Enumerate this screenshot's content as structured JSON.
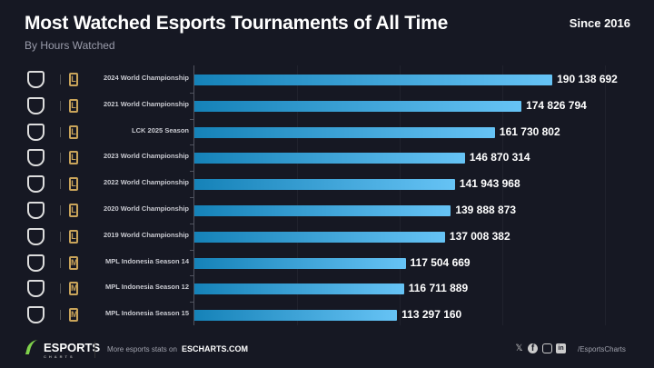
{
  "header": {
    "title": "Most Watched Esports Tournaments of All Time",
    "subtitle": "By Hours Watched",
    "since": "Since 2016"
  },
  "chart_data": {
    "type": "bar",
    "orientation": "horizontal",
    "title": "Most Watched Esports Tournaments of All Time",
    "subtitle": "By Hours Watched",
    "categories": [
      "2024 World Championship",
      "2021 World Championship",
      "LCK 2025 Season",
      "2023 World Championship",
      "2022 World Championship",
      "2020 World Championship",
      "2019 World Championship",
      "MPL Indonesia Season 14",
      "MPL Indonesia Season 12",
      "MPL Indonesia Season 15"
    ],
    "values": [
      190138692,
      174826794,
      161730802,
      146870314,
      141943968,
      139888873,
      137008382,
      117504669,
      116711889,
      113297160
    ],
    "value_labels": [
      "190 138 692",
      "174 826 794",
      "161 730 802",
      "146 870 314",
      "141 943 968",
      "139 888 873",
      "137 008 382",
      "117 504 669",
      "116 711 889",
      "113 297 160"
    ],
    "game_logos": [
      "lol",
      "lol",
      "lol",
      "lol",
      "lol",
      "lol",
      "lol",
      "mlbb",
      "mlbb",
      "mlbb"
    ],
    "bar_color": "#3fa9e0",
    "grid": true
  },
  "footer": {
    "brand": "ESPORTS",
    "brand_sub": "CHARTS",
    "more": "More esports stats on",
    "site": "ESCHARTS.COM",
    "handle": "/EsportsCharts",
    "social_icons": [
      "x-icon",
      "facebook-icon",
      "instagram-icon",
      "linkedin-icon"
    ]
  }
}
